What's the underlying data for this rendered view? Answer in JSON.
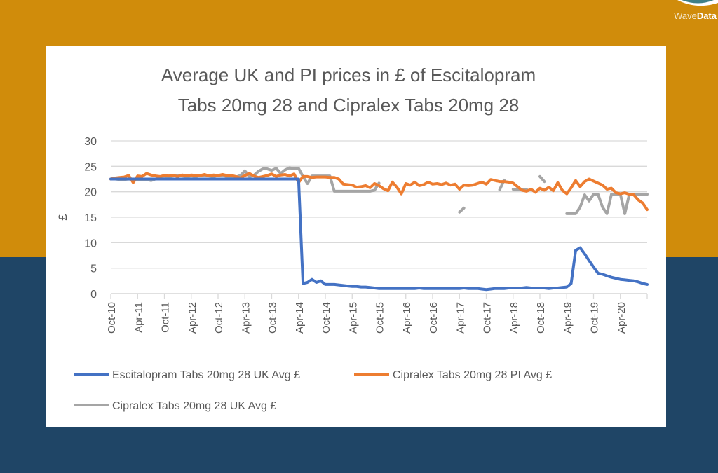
{
  "colors": {
    "background_top": "#D08C0B",
    "background_bottom": "#1F4566",
    "blue": "#4472C4",
    "orange": "#ED7D31",
    "gray": "#A5A5A5",
    "grid": "#D9D9D9",
    "text": "#595959"
  },
  "logo": {
    "text_light": "Wave",
    "text_bold": "Data"
  },
  "chart_data": {
    "type": "line",
    "title_lines": [
      "Average UK and PI prices in £ of Escitalopram",
      "Tabs 20mg 28 and Cipralex Tabs 20mg 28"
    ],
    "xlabel": "",
    "ylabel": "£",
    "ylim": [
      0,
      30
    ],
    "yticks": [
      0,
      5,
      10,
      15,
      20,
      25,
      30
    ],
    "grid": true,
    "legend_placement": "bottom",
    "x_start": "Oct-10",
    "x_end": "Oct-20",
    "x_frequency": "monthly",
    "xtick_labels": [
      "Oct-10",
      "Apr-11",
      "Oct-11",
      "Apr-12",
      "Oct-12",
      "Apr-13",
      "Oct-13",
      "Apr-14",
      "Oct-14",
      "Apr-15",
      "Oct-15",
      "Apr-16",
      "Oct-16",
      "Apr-17",
      "Oct-17",
      "Apr-18",
      "Oct-18",
      "Apr-19",
      "Oct-19",
      "Apr-20"
    ],
    "series": [
      {
        "name": "Escitalopram Tabs 20mg 28 UK Avg £",
        "color": "#4472C4",
        "values": [
          22.5,
          22.5,
          22.5,
          22.5,
          22.5,
          22.5,
          22.5,
          22.5,
          22.5,
          22.5,
          22.5,
          22.5,
          22.5,
          22.5,
          22.5,
          22.5,
          22.5,
          22.5,
          22.5,
          22.5,
          22.5,
          22.5,
          22.5,
          22.5,
          22.5,
          22.5,
          22.5,
          22.5,
          22.5,
          22.5,
          22.5,
          22.5,
          22.5,
          22.5,
          22.5,
          22.5,
          22.5,
          22.5,
          22.5,
          22.5,
          22.5,
          22.5,
          22.5,
          2.0,
          2.2,
          2.8,
          2.2,
          2.5,
          1.8,
          1.8,
          1.8,
          1.7,
          1.6,
          1.5,
          1.4,
          1.4,
          1.3,
          1.3,
          1.2,
          1.1,
          1.0,
          1.0,
          1.0,
          1.0,
          1.0,
          1.0,
          1.0,
          1.0,
          1.0,
          1.1,
          1.0,
          1.0,
          1.0,
          1.0,
          1.0,
          1.0,
          1.0,
          1.0,
          1.0,
          1.1,
          1.0,
          1.0,
          1.0,
          0.9,
          0.8,
          0.9,
          1.0,
          1.0,
          1.0,
          1.1,
          1.1,
          1.1,
          1.1,
          1.2,
          1.1,
          1.1,
          1.1,
          1.1,
          1.0,
          1.1,
          1.1,
          1.2,
          1.3,
          2.0,
          8.5,
          9.0,
          7.8,
          6.5,
          5.2,
          4.0,
          3.8,
          3.5,
          3.2,
          3.0,
          2.8,
          2.7,
          2.6,
          2.5,
          2.3,
          2.0,
          1.8
        ]
      },
      {
        "name": "Cipralex Tabs 20mg 28 PI Avg £",
        "color": "#ED7D31",
        "values": [
          22.5,
          22.7,
          22.8,
          22.9,
          23.2,
          21.8,
          23.1,
          23.0,
          23.6,
          23.3,
          23.1,
          23.0,
          23.2,
          23.1,
          23.2,
          23.0,
          23.3,
          23.1,
          23.3,
          23.2,
          23.2,
          23.4,
          23.1,
          23.3,
          23.2,
          23.4,
          23.2,
          23.2,
          23.0,
          22.7,
          23.2,
          23.6,
          23.1,
          22.8,
          23.0,
          23.2,
          23.5,
          23.0,
          23.3,
          23.4,
          23.1,
          23.5,
          21.8,
          23.0,
          23.0,
          22.8,
          22.9,
          22.9,
          22.9,
          22.8,
          22.8,
          22.5,
          21.5,
          21.4,
          21.3,
          20.9,
          21.0,
          21.2,
          20.8,
          21.6,
          21.2,
          20.6,
          20.2,
          21.9,
          20.9,
          19.6,
          21.6,
          21.3,
          21.9,
          21.2,
          21.4,
          21.9,
          21.5,
          21.6,
          21.4,
          21.7,
          21.3,
          21.5,
          20.5,
          21.3,
          21.2,
          21.3,
          21.6,
          21.9,
          21.5,
          22.4,
          22.2,
          22.0,
          22.0,
          21.9,
          21.7,
          21.0,
          20.3,
          20.1,
          20.5,
          19.9,
          20.7,
          20.3,
          20.9,
          20.2,
          21.8,
          20.3,
          19.6,
          20.8,
          22.2,
          21.0,
          22.0,
          22.5,
          22.1,
          21.7,
          21.3,
          20.5,
          20.7,
          19.8,
          19.6,
          19.8,
          19.5,
          19.4,
          18.4,
          17.8,
          16.5
        ]
      },
      {
        "name": "Cipralex Tabs 20mg 28 UK Avg £",
        "color": "#A5A5A5",
        "values": [
          22.5,
          22.5,
          22.4,
          22.4,
          22.5,
          22.4,
          22.4,
          22.3,
          22.4,
          22.2,
          22.5,
          22.8,
          22.5,
          23.0,
          23.1,
          23.2,
          23.1,
          23.0,
          23.1,
          23.0,
          23.2,
          23.2,
          23.1,
          23.0,
          23.2,
          23.2,
          23.0,
          22.8,
          22.9,
          23.2,
          24.1,
          23.0,
          23.2,
          24.0,
          24.5,
          24.5,
          24.2,
          24.6,
          23.6,
          24.3,
          24.7,
          24.5,
          24.6,
          23.0,
          21.6,
          23.1,
          23.1,
          23.1,
          23.1,
          23.1,
          20.1,
          20.1,
          20.1,
          20.1,
          20.1,
          20.1,
          20.1,
          20.1,
          20.1,
          20.3,
          21.7,
          null,
          null,
          null,
          null,
          null,
          null,
          null,
          null,
          null,
          null,
          null,
          null,
          null,
          null,
          null,
          null,
          null,
          16.0,
          16.8,
          null,
          null,
          null,
          null,
          null,
          null,
          null,
          20.4,
          22.3,
          null,
          20.5,
          20.5,
          20.5,
          20.5,
          null,
          null,
          23.0,
          22.0,
          null,
          null,
          null,
          null,
          15.7,
          15.7,
          15.7,
          17.0,
          19.4,
          18.2,
          19.5,
          19.5,
          17.0,
          15.7,
          19.5,
          19.5,
          19.5,
          15.7,
          19.5,
          19.5,
          19.5,
          19.5,
          19.5
        ]
      }
    ]
  }
}
